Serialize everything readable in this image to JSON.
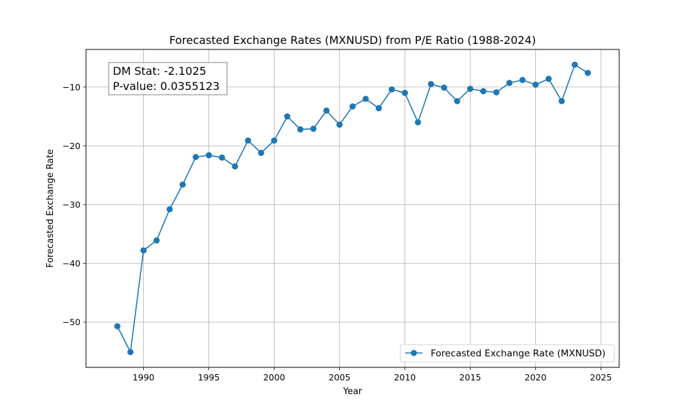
{
  "chart_data": {
    "type": "line",
    "title": "Forecasted Exchange Rates (MXNUSD) from P/E Ratio (1988-2024)",
    "xlabel": "Year",
    "ylabel": "Forecasted Exchange Rate",
    "xlim": [
      1985.6,
      2026.4
    ],
    "ylim": [
      -57.7,
      -3.6
    ],
    "xticks": [
      1990,
      1995,
      2000,
      2005,
      2010,
      2015,
      2020,
      2025
    ],
    "yticks": [
      -50,
      -40,
      -30,
      -20,
      -10
    ],
    "grid": true,
    "legend_position": "lower-right",
    "annotation": {
      "lines": [
        "DM Stat: -2.1025",
        "P-value: 0.0355123"
      ],
      "position": "upper-left"
    },
    "series": [
      {
        "name": "Forecasted Exchange Rate (MXNUSD)",
        "color": "#1f77b4",
        "marker": "circle",
        "x": [
          1988,
          1989,
          1990,
          1991,
          1992,
          1993,
          1994,
          1995,
          1996,
          1997,
          1998,
          1999,
          2000,
          2001,
          2002,
          2003,
          2004,
          2005,
          2006,
          2007,
          2008,
          2009,
          2010,
          2011,
          2012,
          2013,
          2014,
          2015,
          2016,
          2017,
          2018,
          2019,
          2020,
          2021,
          2022,
          2023,
          2024
        ],
        "y": [
          -50.7,
          -55.1,
          -37.8,
          -36.1,
          -30.8,
          -26.6,
          -21.9,
          -21.6,
          -22.0,
          -23.5,
          -19.1,
          -21.2,
          -19.1,
          -15.0,
          -17.2,
          -17.1,
          -14.0,
          -16.4,
          -13.3,
          -12.0,
          -13.6,
          -10.4,
          -11.0,
          -16.0,
          -9.5,
          -10.1,
          -12.4,
          -10.3,
          -10.7,
          -10.9,
          -9.3,
          -8.8,
          -9.6,
          -8.6,
          -12.4,
          -6.2,
          -7.6
        ]
      }
    ]
  }
}
